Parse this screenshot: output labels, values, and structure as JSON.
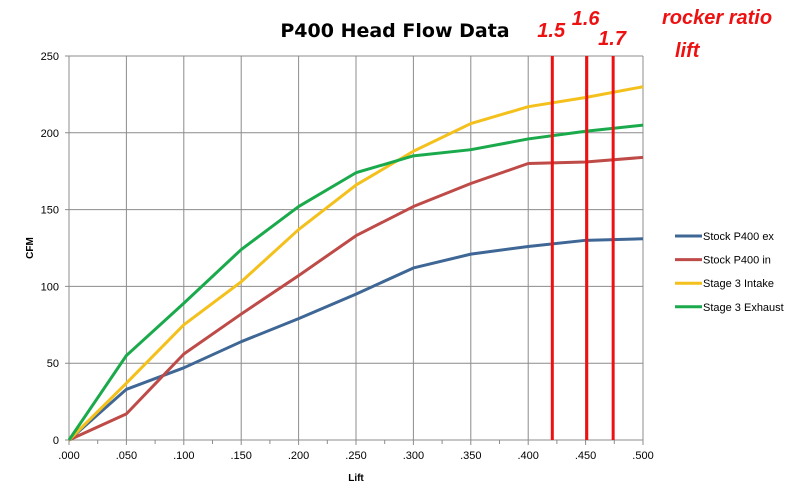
{
  "chart_data": {
    "type": "line",
    "title": "P400 Head Flow Data",
    "xlabel": "Lift",
    "ylabel": "CFM",
    "x": [
      0,
      0.05,
      0.1,
      0.15,
      0.2,
      0.25,
      0.3,
      0.35,
      0.4,
      0.45,
      0.5
    ],
    "x_tick_labels": [
      ".000",
      ".050",
      ".100",
      ".150",
      ".200",
      ".250",
      ".300",
      ".350",
      ".400",
      ".450",
      ".500"
    ],
    "y_tick_labels": [
      "0",
      "50",
      "100",
      "150",
      "200",
      "250"
    ],
    "xlim": [
      0,
      0.5
    ],
    "ylim": [
      0,
      250
    ],
    "grid": true,
    "legend_position": "right",
    "series": [
      {
        "name": "Stock P400 ex",
        "color": "#3f6796",
        "values": [
          0,
          33,
          47,
          64,
          79,
          95,
          112,
          121,
          126,
          130,
          131
        ]
      },
      {
        "name": "Stock P400 in",
        "color": "#be4b48",
        "values": [
          0,
          17,
          56,
          82,
          107,
          133,
          152,
          167,
          180,
          181,
          184
        ]
      },
      {
        "name": "Stage 3 Intake",
        "color": "#f4c01c",
        "values": [
          0,
          37,
          75,
          103,
          137,
          166,
          188,
          206,
          217,
          223,
          230
        ]
      },
      {
        "name": "Stage 3 Exhaust",
        "color": "#1aaa4c",
        "values": [
          0,
          55,
          89,
          124,
          152,
          174,
          185,
          189,
          196,
          201,
          205
        ]
      }
    ],
    "annotations": {
      "color": "#ee1111",
      "header_line1": "rocker ratio",
      "header_line2": "lift",
      "markers": [
        {
          "label": "1.5",
          "lift": 0.421
        },
        {
          "label": "1.6",
          "lift": 0.451
        },
        {
          "label": "1.7",
          "lift": 0.474
        }
      ]
    }
  }
}
